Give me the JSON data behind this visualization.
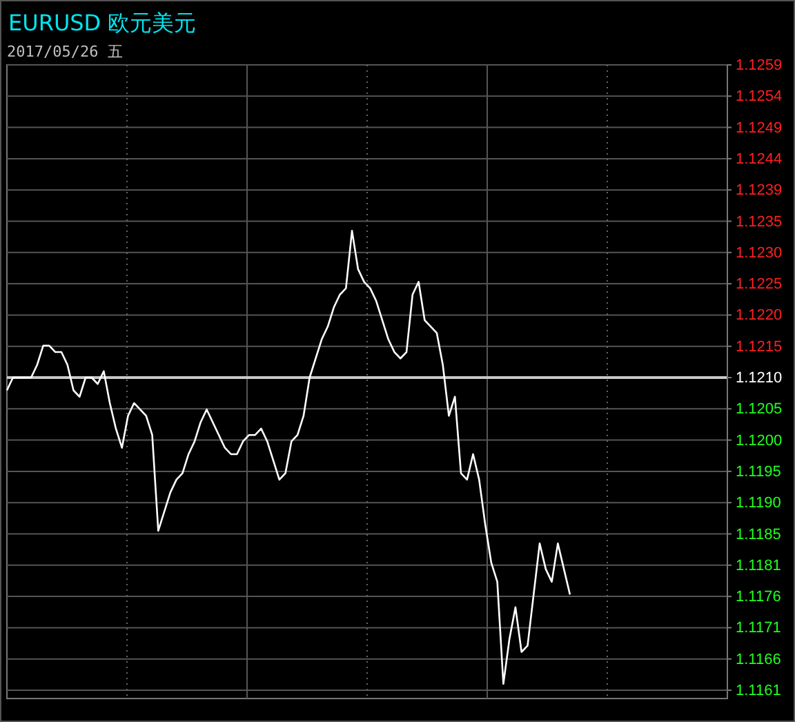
{
  "chart_data": {
    "type": "line",
    "title": "EURUSD 欧元美元",
    "subtitle": "2017/05/26 五",
    "categories": [
      null,
      null,
      null,
      null,
      null,
      null,
      null,
      null,
      null,
      null,
      null,
      null,
      null,
      null,
      null,
      null,
      null,
      null,
      null,
      null,
      null,
      null,
      null,
      null,
      null,
      null,
      null,
      null,
      null,
      null,
      null,
      null,
      null,
      null,
      null,
      null,
      null,
      null,
      null,
      null,
      null,
      null,
      null,
      null,
      null,
      null,
      null,
      null,
      null,
      null,
      null,
      null,
      null,
      null,
      null,
      null,
      null,
      null,
      null,
      null,
      null,
      null,
      null,
      null,
      null,
      null,
      null,
      null,
      null,
      null,
      null,
      null,
      null,
      null,
      null,
      null,
      null,
      null,
      null,
      null,
      null,
      null,
      null,
      null,
      null,
      null,
      null,
      null,
      null,
      null,
      null,
      null,
      null,
      null,
      null,
      null,
      null,
      null,
      null,
      null,
      null,
      null,
      null,
      null,
      null,
      null,
      null,
      null,
      null,
      null,
      null,
      null,
      null,
      null,
      null,
      null,
      null,
      null,
      null,
      null
    ],
    "series": [
      {
        "color": "#ffffff",
        "values": [
          1.1208,
          1.121,
          1.121,
          1.121,
          1.121,
          1.1212,
          1.1215,
          1.1215,
          1.1214,
          1.1214,
          1.1212,
          1.1208,
          1.1207,
          1.121,
          1.121,
          1.1209,
          1.1211,
          1.1206,
          1.1202,
          1.1199,
          1.1204,
          1.1206,
          1.1205,
          1.1204,
          1.1201,
          1.1186,
          1.1189,
          1.1192,
          1.1194,
          1.1195,
          1.1198,
          1.12,
          1.1203,
          1.1205,
          1.1203,
          1.1201,
          1.1199,
          1.1198,
          1.1198,
          1.12,
          1.1201,
          1.1201,
          1.1202,
          1.12,
          1.1197,
          1.1194,
          1.1195,
          1.12,
          1.1201,
          1.1204,
          1.121,
          1.1213,
          1.1216,
          1.1218,
          1.1221,
          1.1223,
          1.1224,
          1.1233,
          1.1227,
          1.1225,
          1.1224,
          1.1222,
          1.1219,
          1.1216,
          1.1214,
          1.1213,
          1.1214,
          1.1223,
          1.1225,
          1.1219,
          1.1218,
          1.1217,
          1.1212,
          1.1204,
          1.1207,
          1.1195,
          1.1194,
          1.1198,
          1.1194,
          1.1187,
          1.1181,
          1.1178,
          1.1162,
          1.1169,
          1.1174,
          1.1167,
          1.1168,
          1.1176,
          1.1184,
          1.118,
          1.1178,
          1.1184,
          1.118,
          1.1176,
          null,
          null,
          null,
          null,
          null,
          null,
          null,
          null,
          null,
          null,
          null,
          null,
          null,
          null,
          null,
          null,
          null,
          null,
          null,
          null,
          null,
          null,
          null,
          null,
          null,
          null
        ]
      }
    ],
    "ylim": [
      1.1161,
      1.1259
    ],
    "yticks": [
      {
        "value": 1.1161,
        "label": "1.1161"
      },
      {
        "value": 1.11659,
        "label": "1.1166"
      },
      {
        "value": 1.11708,
        "label": "1.1171"
      },
      {
        "value": 1.11757,
        "label": "1.1176"
      },
      {
        "value": 1.11806,
        "label": "1.1181"
      },
      {
        "value": 1.11855,
        "label": "1.1185"
      },
      {
        "value": 1.11904,
        "label": "1.1190"
      },
      {
        "value": 1.11953,
        "label": "1.1195"
      },
      {
        "value": 1.12002,
        "label": "1.1200"
      },
      {
        "value": 1.12051,
        "label": "1.1205"
      },
      {
        "value": 1.121,
        "label": "1.1210"
      },
      {
        "value": 1.12149,
        "label": "1.1215"
      },
      {
        "value": 1.12198,
        "label": "1.1220"
      },
      {
        "value": 1.12247,
        "label": "1.1225"
      },
      {
        "value": 1.12296,
        "label": "1.1230"
      },
      {
        "value": 1.12345,
        "label": "1.1235"
      },
      {
        "value": 1.12394,
        "label": "1.1239"
      },
      {
        "value": 1.12443,
        "label": "1.1244"
      },
      {
        "value": 1.12492,
        "label": "1.1249"
      },
      {
        "value": 1.12541,
        "label": "1.1254"
      },
      {
        "value": 1.1259,
        "label": "1.1259"
      }
    ],
    "ref_lines": [
      {
        "axis": "y",
        "value": 1.121,
        "color": "#c8c8c8"
      }
    ],
    "grid": true,
    "line_style": "solid",
    "marker": "none"
  }
}
